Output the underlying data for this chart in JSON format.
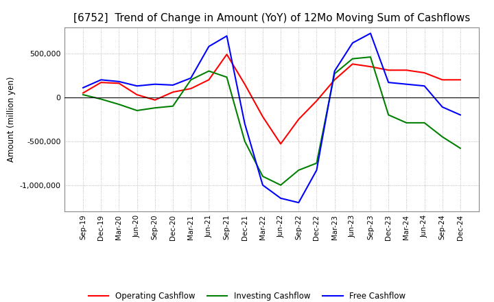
{
  "title": "[6752]  Trend of Change in Amount (YoY) of 12Mo Moving Sum of Cashflows",
  "ylabel": "Amount (million yen)",
  "ylim": [
    -1300000,
    800000
  ],
  "yticks": [
    -1000000,
    -500000,
    0,
    500000
  ],
  "x_labels": [
    "Sep-19",
    "Dec-19",
    "Mar-20",
    "Jun-20",
    "Sep-20",
    "Dec-20",
    "Mar-21",
    "Jun-21",
    "Sep-21",
    "Dec-21",
    "Mar-22",
    "Jun-22",
    "Sep-22",
    "Dec-22",
    "Mar-23",
    "Jun-23",
    "Sep-23",
    "Dec-23",
    "Mar-24",
    "Jun-24",
    "Sep-24",
    "Dec-24"
  ],
  "operating": [
    50000,
    170000,
    160000,
    30000,
    -30000,
    60000,
    100000,
    200000,
    490000,
    150000,
    -220000,
    -530000,
    -250000,
    -40000,
    200000,
    380000,
    350000,
    310000,
    310000,
    280000,
    200000,
    200000
  ],
  "investing": [
    30000,
    -20000,
    -80000,
    -150000,
    -120000,
    -100000,
    200000,
    300000,
    230000,
    -500000,
    -900000,
    -1000000,
    -830000,
    -750000,
    270000,
    440000,
    460000,
    -200000,
    -290000,
    -290000,
    -450000,
    -580000
  ],
  "free": [
    110000,
    200000,
    180000,
    130000,
    150000,
    140000,
    220000,
    580000,
    700000,
    -300000,
    -1000000,
    -1150000,
    -1200000,
    -830000,
    300000,
    620000,
    730000,
    170000,
    150000,
    130000,
    -110000,
    -200000
  ],
  "operating_color": "#FF0000",
  "investing_color": "#008000",
  "free_color": "#0000FF",
  "grid_color": "#AAAAAA",
  "bg_color": "#FFFFFF",
  "title_fontsize": 11,
  "legend_labels": [
    "Operating Cashflow",
    "Investing Cashflow",
    "Free Cashflow"
  ]
}
